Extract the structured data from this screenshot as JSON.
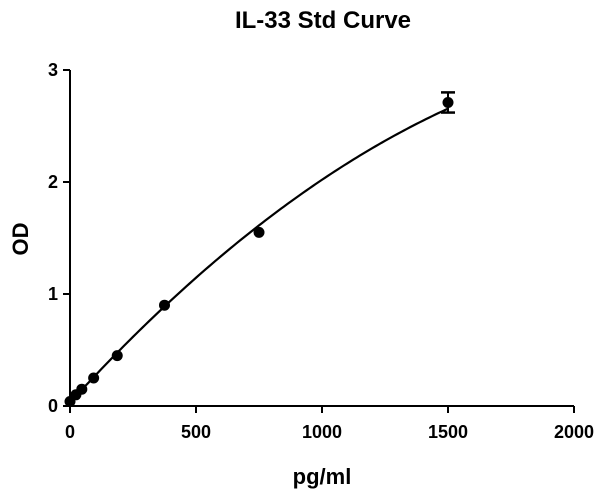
{
  "chart_data": {
    "type": "scatter",
    "title": "IL-33 Std Curve",
    "xlabel": "pg/ml",
    "ylabel": "OD",
    "xlim": [
      0,
      2000
    ],
    "ylim": [
      0,
      3
    ],
    "x_ticks": [
      0,
      500,
      1000,
      1500,
      2000
    ],
    "y_ticks": [
      0,
      1,
      2,
      3
    ],
    "x_tick_labels": [
      "0",
      "500",
      "1000",
      "1500",
      "2000"
    ],
    "y_tick_labels": [
      "0",
      "1",
      "2",
      "3"
    ],
    "grid": false,
    "legend": "none",
    "series": [
      {
        "points": [
          {
            "x": 0,
            "y": 0.04
          },
          {
            "x": 23.4,
            "y": 0.1
          },
          {
            "x": 46.9,
            "y": 0.15
          },
          {
            "x": 93.8,
            "y": 0.25
          },
          {
            "x": 187.5,
            "y": 0.45
          },
          {
            "x": 375,
            "y": 0.9
          },
          {
            "x": 750,
            "y": 1.55
          },
          {
            "x": 1500,
            "y": 2.71,
            "err": 0.09
          }
        ],
        "fit": {
          "type": "quadratic",
          "a": -4.8e-07,
          "b": 0.00247,
          "c": 0.03
        }
      }
    ],
    "colors": {
      "marker": "#000000",
      "line": "#000000"
    }
  }
}
